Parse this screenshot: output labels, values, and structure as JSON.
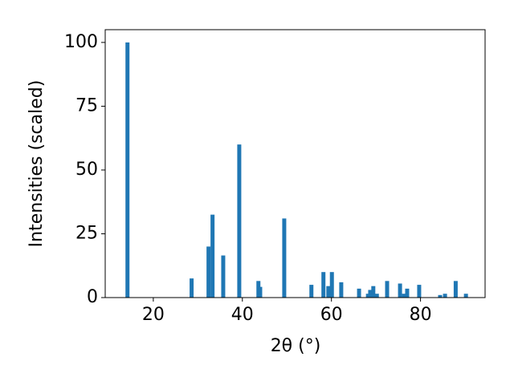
{
  "chart_data": {
    "type": "bar",
    "xlabel": "2θ (°)",
    "ylabel": "Intensities (scaled)",
    "x": [
      14.2,
      28.6,
      32.4,
      33.3,
      35.7,
      39.3,
      43.6,
      44.0,
      49.4,
      55.5,
      58.2,
      59.3,
      60.1,
      62.2,
      66.2,
      68.2,
      68.7,
      69.4,
      70.2,
      72.5,
      75.4,
      76.3,
      77.0,
      79.7,
      84.4,
      85.5,
      87.9,
      90.2
    ],
    "values": [
      100,
      7.5,
      20,
      32.5,
      16.5,
      60,
      6.5,
      4.2,
      31,
      5,
      10,
      4.5,
      10,
      6,
      3.5,
      1.5,
      3,
      4.5,
      1.5,
      6.5,
      5.5,
      1.5,
      3.5,
      5,
      1,
      1.5,
      6.5,
      1.5
    ],
    "color": "#1f77b4",
    "xlim": [
      9.2,
      94.5
    ],
    "ylim": [
      0,
      105
    ],
    "xticks": [
      20,
      40,
      60,
      80
    ],
    "yticks": [
      0,
      25,
      50,
      75,
      100
    ],
    "grid": false
  }
}
